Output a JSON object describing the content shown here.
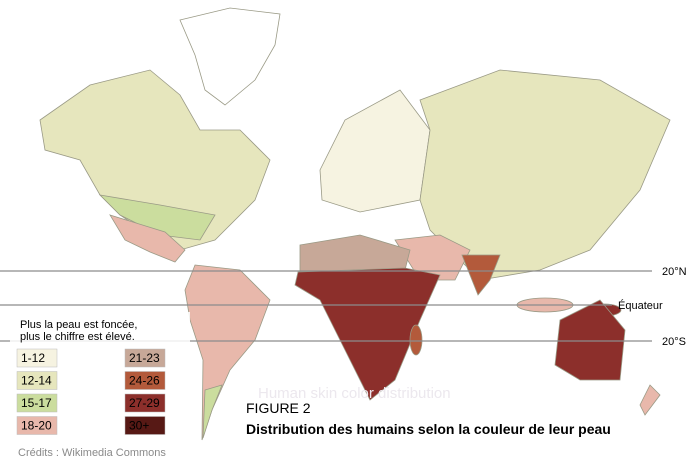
{
  "legend": {
    "note": [
      "Plus la peau est foncée,",
      "plus le chiffre est élevé."
    ],
    "items": [
      {
        "label": "1-12",
        "color": "#f6f3e1"
      },
      {
        "label": "12-14",
        "color": "#e6e6bd"
      },
      {
        "label": "15-17",
        "color": "#cbdd9e"
      },
      {
        "label": "18-20",
        "color": "#e8b8ab"
      },
      {
        "label": "21-23",
        "color": "#c7a898"
      },
      {
        "label": "24-26",
        "color": "#b35a3b"
      },
      {
        "label": "27-29",
        "color": "#8c2f2b"
      },
      {
        "label": "30+",
        "color": "#571915"
      }
    ]
  },
  "lines": [
    {
      "label": "20°N"
    },
    {
      "label": "Équateur"
    },
    {
      "label": "20°S"
    }
  ],
  "watermark": "Human skin color distribution",
  "caption": {
    "figure": "FIGURE 2",
    "title": "Distribution des humains selon la couleur de leur peau"
  },
  "credits": "Crédits : Wikimedia Commons"
}
